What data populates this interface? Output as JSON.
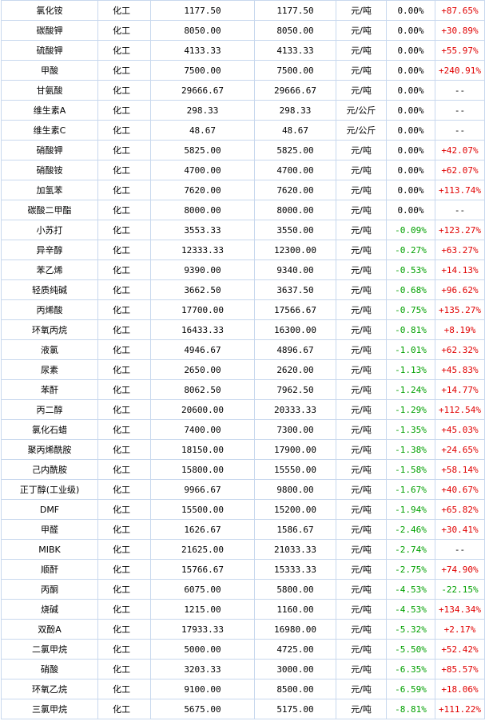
{
  "colors": {
    "name_link": "#1a4a9c",
    "positive": "#e00000",
    "negative": "#00a000",
    "border": "#c8d8ee"
  },
  "rows": [
    {
      "name": "氯化铵",
      "category": "化工",
      "price_prev": "1177.50",
      "price_now": "1177.50",
      "unit": "元/吨",
      "change": "0.00%",
      "yoy": "+87.65%"
    },
    {
      "name": "碳酸钾",
      "category": "化工",
      "price_prev": "8050.00",
      "price_now": "8050.00",
      "unit": "元/吨",
      "change": "0.00%",
      "yoy": "+30.89%"
    },
    {
      "name": "硫酸钾",
      "category": "化工",
      "price_prev": "4133.33",
      "price_now": "4133.33",
      "unit": "元/吨",
      "change": "0.00%",
      "yoy": "+55.97%"
    },
    {
      "name": "甲酸",
      "category": "化工",
      "price_prev": "7500.00",
      "price_now": "7500.00",
      "unit": "元/吨",
      "change": "0.00%",
      "yoy": "+240.91%"
    },
    {
      "name": "甘氨酸",
      "category": "化工",
      "price_prev": "29666.67",
      "price_now": "29666.67",
      "unit": "元/吨",
      "change": "0.00%",
      "yoy": "--"
    },
    {
      "name": "维生素A",
      "category": "化工",
      "price_prev": "298.33",
      "price_now": "298.33",
      "unit": "元/公斤",
      "change": "0.00%",
      "yoy": "--"
    },
    {
      "name": "维生素C",
      "category": "化工",
      "price_prev": "48.67",
      "price_now": "48.67",
      "unit": "元/公斤",
      "change": "0.00%",
      "yoy": "--"
    },
    {
      "name": "硝酸钾",
      "category": "化工",
      "price_prev": "5825.00",
      "price_now": "5825.00",
      "unit": "元/吨",
      "change": "0.00%",
      "yoy": "+42.07%"
    },
    {
      "name": "硝酸铵",
      "category": "化工",
      "price_prev": "4700.00",
      "price_now": "4700.00",
      "unit": "元/吨",
      "change": "0.00%",
      "yoy": "+62.07%"
    },
    {
      "name": "加氢苯",
      "category": "化工",
      "price_prev": "7620.00",
      "price_now": "7620.00",
      "unit": "元/吨",
      "change": "0.00%",
      "yoy": "+113.74%"
    },
    {
      "name": "碳酸二甲酯",
      "category": "化工",
      "price_prev": "8000.00",
      "price_now": "8000.00",
      "unit": "元/吨",
      "change": "0.00%",
      "yoy": "--"
    },
    {
      "name": "小苏打",
      "category": "化工",
      "price_prev": "3553.33",
      "price_now": "3550.00",
      "unit": "元/吨",
      "change": "-0.09%",
      "yoy": "+123.27%"
    },
    {
      "name": "异辛醇",
      "category": "化工",
      "price_prev": "12333.33",
      "price_now": "12300.00",
      "unit": "元/吨",
      "change": "-0.27%",
      "yoy": "+63.27%"
    },
    {
      "name": "苯乙烯",
      "category": "化工",
      "price_prev": "9390.00",
      "price_now": "9340.00",
      "unit": "元/吨",
      "change": "-0.53%",
      "yoy": "+14.13%"
    },
    {
      "name": "轻质纯碱",
      "category": "化工",
      "price_prev": "3662.50",
      "price_now": "3637.50",
      "unit": "元/吨",
      "change": "-0.68%",
      "yoy": "+96.62%"
    },
    {
      "name": "丙烯酸",
      "category": "化工",
      "price_prev": "17700.00",
      "price_now": "17566.67",
      "unit": "元/吨",
      "change": "-0.75%",
      "yoy": "+135.27%"
    },
    {
      "name": "环氧丙烷",
      "category": "化工",
      "price_prev": "16433.33",
      "price_now": "16300.00",
      "unit": "元/吨",
      "change": "-0.81%",
      "yoy": "+8.19%"
    },
    {
      "name": "液氯",
      "category": "化工",
      "price_prev": "4946.67",
      "price_now": "4896.67",
      "unit": "元/吨",
      "change": "-1.01%",
      "yoy": "+62.32%"
    },
    {
      "name": "尿素",
      "category": "化工",
      "price_prev": "2650.00",
      "price_now": "2620.00",
      "unit": "元/吨",
      "change": "-1.13%",
      "yoy": "+45.83%"
    },
    {
      "name": "苯酐",
      "category": "化工",
      "price_prev": "8062.50",
      "price_now": "7962.50",
      "unit": "元/吨",
      "change": "-1.24%",
      "yoy": "+14.77%"
    },
    {
      "name": "丙二醇",
      "category": "化工",
      "price_prev": "20600.00",
      "price_now": "20333.33",
      "unit": "元/吨",
      "change": "-1.29%",
      "yoy": "+112.54%"
    },
    {
      "name": "氯化石蜡",
      "category": "化工",
      "price_prev": "7400.00",
      "price_now": "7300.00",
      "unit": "元/吨",
      "change": "-1.35%",
      "yoy": "+45.03%"
    },
    {
      "name": "聚丙烯酰胺",
      "category": "化工",
      "price_prev": "18150.00",
      "price_now": "17900.00",
      "unit": "元/吨",
      "change": "-1.38%",
      "yoy": "+24.65%"
    },
    {
      "name": "己内酰胺",
      "category": "化工",
      "price_prev": "15800.00",
      "price_now": "15550.00",
      "unit": "元/吨",
      "change": "-1.58%",
      "yoy": "+58.14%"
    },
    {
      "name": "正丁醇(工业级)",
      "category": "化工",
      "price_prev": "9966.67",
      "price_now": "9800.00",
      "unit": "元/吨",
      "change": "-1.67%",
      "yoy": "+40.67%"
    },
    {
      "name": "DMF",
      "category": "化工",
      "price_prev": "15500.00",
      "price_now": "15200.00",
      "unit": "元/吨",
      "change": "-1.94%",
      "yoy": "+65.82%"
    },
    {
      "name": "甲醛",
      "category": "化工",
      "price_prev": "1626.67",
      "price_now": "1586.67",
      "unit": "元/吨",
      "change": "-2.46%",
      "yoy": "+30.41%"
    },
    {
      "name": "MIBK",
      "category": "化工",
      "price_prev": "21625.00",
      "price_now": "21033.33",
      "unit": "元/吨",
      "change": "-2.74%",
      "yoy": "--"
    },
    {
      "name": "顺酐",
      "category": "化工",
      "price_prev": "15766.67",
      "price_now": "15333.33",
      "unit": "元/吨",
      "change": "-2.75%",
      "yoy": "+74.90%"
    },
    {
      "name": "丙酮",
      "category": "化工",
      "price_prev": "6075.00",
      "price_now": "5800.00",
      "unit": "元/吨",
      "change": "-4.53%",
      "yoy": "-22.15%"
    },
    {
      "name": "烧碱",
      "category": "化工",
      "price_prev": "1215.00",
      "price_now": "1160.00",
      "unit": "元/吨",
      "change": "-4.53%",
      "yoy": "+134.34%"
    },
    {
      "name": "双酚A",
      "category": "化工",
      "price_prev": "17933.33",
      "price_now": "16980.00",
      "unit": "元/吨",
      "change": "-5.32%",
      "yoy": "+2.17%"
    },
    {
      "name": "二氯甲烷",
      "category": "化工",
      "price_prev": "5000.00",
      "price_now": "4725.00",
      "unit": "元/吨",
      "change": "-5.50%",
      "yoy": "+52.42%"
    },
    {
      "name": "硝酸",
      "category": "化工",
      "price_prev": "3203.33",
      "price_now": "3000.00",
      "unit": "元/吨",
      "change": "-6.35%",
      "yoy": "+85.57%"
    },
    {
      "name": "环氧乙烷",
      "category": "化工",
      "price_prev": "9100.00",
      "price_now": "8500.00",
      "unit": "元/吨",
      "change": "-6.59%",
      "yoy": "+18.06%"
    },
    {
      "name": "三氯甲烷",
      "category": "化工",
      "price_prev": "5675.00",
      "price_now": "5175.00",
      "unit": "元/吨",
      "change": "-8.81%",
      "yoy": "+111.22%"
    }
  ]
}
